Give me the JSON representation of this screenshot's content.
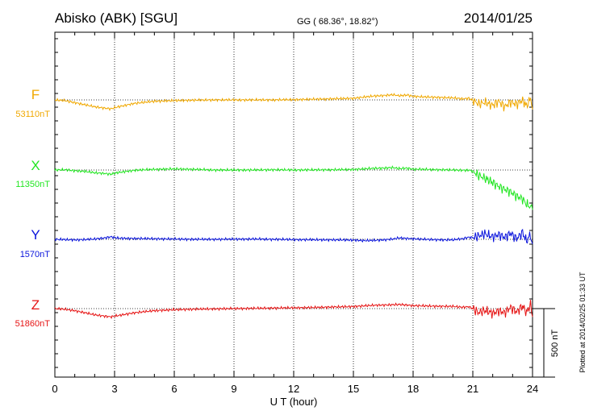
{
  "header": {
    "station": "Abisko (ABK)  [SGU]",
    "coords": "GG ( 68.36°,  18.82°)",
    "date": "2014/01/25"
  },
  "footer_note": "Plotted at 2014/02/25 01:33 UT",
  "scale_label": "500 nT",
  "chart_data": {
    "type": "line",
    "xlabel": "U T (hour)",
    "xlim": [
      0,
      24
    ],
    "xticks": [
      "0",
      "3",
      "6",
      "9",
      "12",
      "15",
      "18",
      "21",
      "24"
    ],
    "grid": true,
    "scale_nT": 500,
    "series": [
      {
        "name": "F",
        "baseline_label": "53110nT",
        "baseline": 53110,
        "color": "#f0a800",
        "x": [
          0,
          0.5,
          1,
          1.5,
          2,
          2.5,
          2.8,
          3.2,
          4,
          5,
          6,
          7,
          8,
          9,
          10,
          11,
          12,
          13,
          14,
          15,
          15.5,
          16,
          16.5,
          17,
          17.3,
          17.7,
          18,
          18.5,
          19,
          19.5,
          20,
          20.5,
          20.8,
          21,
          21.3,
          21.6,
          22,
          22.3,
          22.6,
          22.9,
          23.2,
          23.5,
          23.7,
          23.9,
          24
        ],
        "values": [
          53110,
          53105,
          53090,
          53075,
          53060,
          53050,
          53045,
          53060,
          53085,
          53100,
          53105,
          53108,
          53110,
          53110,
          53110,
          53110,
          53112,
          53115,
          53118,
          53122,
          53130,
          53138,
          53142,
          53148,
          53140,
          53146,
          53136,
          53132,
          53130,
          53127,
          53125,
          53118,
          53122,
          53108,
          53080,
          53092,
          53070,
          53100,
          53060,
          53095,
          53078,
          53110,
          53065,
          53120,
          53040
        ]
      },
      {
        "name": "X",
        "baseline_label": "11350nT",
        "baseline": 11350,
        "color": "#22e622",
        "x": [
          0,
          0.5,
          1,
          1.5,
          2,
          2.5,
          2.8,
          3.2,
          4,
          5,
          6,
          7,
          8,
          9,
          10,
          11,
          12,
          13,
          14,
          15,
          15.5,
          16,
          16.5,
          17,
          17.3,
          17.7,
          18,
          18.5,
          19,
          19.5,
          20,
          20.5,
          20.8,
          21,
          21.3,
          21.6,
          22,
          22.3,
          22.6,
          22.9,
          23.2,
          23.5,
          23.7,
          23.9,
          24
        ],
        "values": [
          11350,
          11352,
          11345,
          11340,
          11330,
          11325,
          11320,
          11332,
          11348,
          11355,
          11358,
          11355,
          11350,
          11350,
          11350,
          11352,
          11350,
          11351,
          11352,
          11354,
          11358,
          11362,
          11364,
          11368,
          11360,
          11364,
          11356,
          11355,
          11353,
          11352,
          11350,
          11348,
          11350,
          11340,
          11310,
          11290,
          11260,
          11230,
          11210,
          11190,
          11160,
          11140,
          11100,
          11080,
          11060
        ]
      },
      {
        "name": "Y",
        "baseline_label": "1570nT",
        "baseline": 1570,
        "color": "#0a14dc",
        "x": [
          0,
          0.5,
          1,
          1.5,
          2,
          2.5,
          2.8,
          3.2,
          4,
          5,
          6,
          7,
          8,
          9,
          10,
          11,
          12,
          13,
          14,
          15,
          15.5,
          16,
          16.5,
          17,
          17.3,
          17.7,
          18,
          18.5,
          19,
          19.5,
          20,
          20.5,
          20.8,
          21,
          21.3,
          21.6,
          22,
          22.3,
          22.6,
          22.9,
          23.2,
          23.5,
          23.7,
          23.9,
          24
        ],
        "values": [
          1570,
          1568,
          1566,
          1568,
          1572,
          1580,
          1588,
          1578,
          1576,
          1574,
          1572,
          1570,
          1570,
          1571,
          1572,
          1570,
          1568,
          1567,
          1566,
          1565,
          1560,
          1562,
          1566,
          1572,
          1580,
          1576,
          1574,
          1570,
          1568,
          1566,
          1566,
          1575,
          1585,
          1582,
          1596,
          1610,
          1588,
          1605,
          1585,
          1615,
          1575,
          1620,
          1555,
          1608,
          1535
        ]
      },
      {
        "name": "Z",
        "baseline_label": "51860nT",
        "baseline": 51860,
        "color": "#e61414",
        "x": [
          0,
          0.5,
          1,
          1.5,
          2,
          2.5,
          2.8,
          3.2,
          4,
          5,
          6,
          7,
          8,
          9,
          10,
          11,
          12,
          13,
          14,
          15,
          15.5,
          16,
          16.5,
          17,
          17.3,
          17.7,
          18,
          18.5,
          19,
          19.5,
          20,
          20.5,
          20.8,
          21,
          21.3,
          21.6,
          22,
          22.3,
          22.6,
          22.9,
          23.2,
          23.5,
          23.7,
          23.9,
          24
        ],
        "values": [
          51860,
          51855,
          51845,
          51830,
          51815,
          51805,
          51800,
          51810,
          51830,
          51845,
          51852,
          51856,
          51858,
          51860,
          51862,
          51864,
          51866,
          51868,
          51872,
          51875,
          51880,
          51884,
          51886,
          51888,
          51890,
          51886,
          51882,
          51880,
          51878,
          51877,
          51876,
          51870,
          51874,
          51860,
          51830,
          51848,
          51825,
          51845,
          51830,
          51870,
          51835,
          51880,
          51830,
          51890,
          51800
        ]
      }
    ]
  }
}
